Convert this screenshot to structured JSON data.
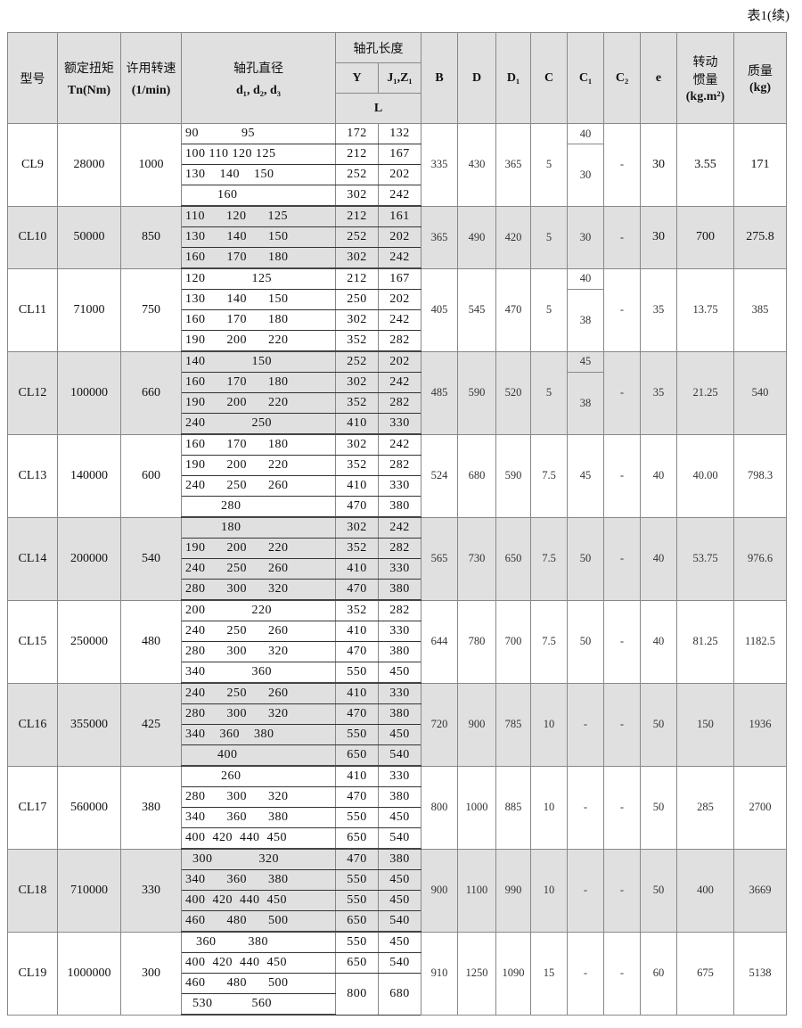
{
  "caption": "表1(续)",
  "headers": {
    "model": "型号",
    "torque": "额定扭矩",
    "torque_unit": "Tn(Nm)",
    "speed": "许用转速",
    "speed_unit": "(1/min)",
    "bore": "轴孔直径",
    "bore_sym": "d₁, d₂, d₃",
    "length": "轴孔长度",
    "Y": "Y",
    "J": "J₁,Z₁",
    "L": "L",
    "B": "B",
    "D": "D",
    "D1": "D₁",
    "C": "C",
    "C1": "C₁",
    "C2": "C₂",
    "e": "e",
    "inertia": "转动惯量",
    "inertia_unit": "(kg.m²)",
    "mass": "质量",
    "mass_unit": "(kg)"
  },
  "rows": [
    {
      "model": "CL9",
      "torque": "28000",
      "speed": "1000",
      "bores": [
        "90            95",
        "100 110 120 125",
        "130    140    150",
        "         160"
      ],
      "L": [
        [
          "172",
          "132"
        ],
        [
          "212",
          "167"
        ],
        [
          "252",
          "202"
        ],
        [
          "302",
          "242"
        ]
      ],
      "B": "335",
      "D": "430",
      "D1": "365",
      "C": "5",
      "C1": [
        "40",
        "30"
      ],
      "C2": "-",
      "e": "30",
      "inertia": "3.55",
      "mass": "171"
    },
    {
      "model": "CL10",
      "torque": "50000",
      "speed": "850",
      "bores": [
        "110      120      125",
        "130      140      150",
        "160      170      180"
      ],
      "L": [
        [
          "212",
          "161"
        ],
        [
          "252",
          "202"
        ],
        [
          "302",
          "242"
        ]
      ],
      "B": "365",
      "D": "490",
      "D1": "420",
      "C": "5",
      "C1": "30",
      "C2": "-",
      "e": "30",
      "inertia": "700",
      "mass": "275.8"
    },
    {
      "model": "CL11",
      "torque": "71000",
      "speed": "750",
      "bores": [
        "120             125",
        "130      140      150",
        "160      170      180",
        "190      200      220"
      ],
      "L": [
        [
          "212",
          "167"
        ],
        [
          "250",
          "202"
        ],
        [
          "302",
          "242"
        ],
        [
          "352",
          "282"
        ]
      ],
      "B": "405",
      "D": "545",
      "D1": "470",
      "C": "5",
      "C1": [
        "40",
        "38"
      ],
      "C2": "-",
      "e": "35",
      "inertia": "13.75",
      "mass": "385"
    },
    {
      "model": "CL12",
      "torque": "100000",
      "speed": "660",
      "bores": [
        "140             150",
        "160      170      180",
        "190      200      220",
        "240             250"
      ],
      "L": [
        [
          "252",
          "202"
        ],
        [
          "302",
          "242"
        ],
        [
          "352",
          "282"
        ],
        [
          "410",
          "330"
        ]
      ],
      "B": "485",
      "D": "590",
      "D1": "520",
      "C": "5",
      "C1": [
        "45",
        "38"
      ],
      "C2": "-",
      "e": "35",
      "inertia": "21.25",
      "mass": "540"
    },
    {
      "model": "CL13",
      "torque": "140000",
      "speed": "600",
      "bores": [
        "160      170      180",
        "190      200      220",
        "240      250      260",
        "          280"
      ],
      "L": [
        [
          "302",
          "242"
        ],
        [
          "352",
          "282"
        ],
        [
          "410",
          "330"
        ],
        [
          "470",
          "380"
        ]
      ],
      "B": "524",
      "D": "680",
      "D1": "590",
      "C": "7.5",
      "C1": "45",
      "C2": "-",
      "e": "40",
      "inertia": "40.00",
      "mass": "798.3"
    },
    {
      "model": "CL14",
      "torque": "200000",
      "speed": "540",
      "bores": [
        "          180",
        "190      200      220",
        "240      250      260",
        "280      300      320"
      ],
      "L": [
        [
          "302",
          "242"
        ],
        [
          "352",
          "282"
        ],
        [
          "410",
          "330"
        ],
        [
          "470",
          "380"
        ]
      ],
      "B": "565",
      "D": "730",
      "D1": "650",
      "C": "7.5",
      "C1": "50",
      "C2": "-",
      "e": "40",
      "inertia": "53.75",
      "mass": "976.6"
    },
    {
      "model": "CL15",
      "torque": "250000",
      "speed": "480",
      "bores": [
        "200             220",
        "240      250      260",
        "280      300      320",
        "340             360"
      ],
      "L": [
        [
          "352",
          "282"
        ],
        [
          "410",
          "330"
        ],
        [
          "470",
          "380"
        ],
        [
          "550",
          "450"
        ]
      ],
      "B": "644",
      "D": "780",
      "D1": "700",
      "C": "7.5",
      "C1": "50",
      "C2": "-",
      "e": "40",
      "inertia": "81.25",
      "mass": "1182.5"
    },
    {
      "model": "CL16",
      "torque": "355000",
      "speed": "425",
      "bores": [
        "240      250      260",
        "280      300      320",
        "340    360    380",
        "         400"
      ],
      "L": [
        [
          "410",
          "330"
        ],
        [
          "470",
          "380"
        ],
        [
          "550",
          "450"
        ],
        [
          "650",
          "540"
        ]
      ],
      "B": "720",
      "D": "900",
      "D1": "785",
      "C": "10",
      "C1": "-",
      "C2": "-",
      "e": "50",
      "inertia": "150",
      "mass": "1936"
    },
    {
      "model": "CL17",
      "torque": "560000",
      "speed": "380",
      "bores": [
        "          260",
        "280      300      320",
        "340      360      380",
        "400  420  440  450"
      ],
      "L": [
        [
          "410",
          "330"
        ],
        [
          "470",
          "380"
        ],
        [
          "550",
          "450"
        ],
        [
          "650",
          "540"
        ]
      ],
      "B": "800",
      "D": "1000",
      "D1": "885",
      "C": "10",
      "C1": "-",
      "C2": "-",
      "e": "50",
      "inertia": "285",
      "mass": "2700"
    },
    {
      "model": "CL18",
      "torque": "710000",
      "speed": "330",
      "bores": [
        "  300             320",
        "340      360      380",
        "400  420  440  450",
        "460      480      500"
      ],
      "L": [
        [
          "470",
          "380"
        ],
        [
          "550",
          "450"
        ],
        [
          "550",
          "450"
        ],
        [
          "650",
          "540"
        ]
      ],
      "B": "900",
      "D": "1100",
      "D1": "990",
      "C": "10",
      "C1": "-",
      "C2": "-",
      "e": "50",
      "inertia": "400",
      "mass": "3669"
    },
    {
      "model": "CL19",
      "torque": "1000000",
      "speed": "300",
      "bores": [
        "   360         380",
        "400  420  440  450",
        "460      480      500",
        "  530           560"
      ],
      "L": [
        [
          "550",
          "450"
        ],
        [
          "650",
          "540"
        ],
        [
          "800",
          "680"
        ]
      ],
      "B": "910",
      "D": "1250",
      "D1": "1090",
      "C": "15",
      "C1": "-",
      "C2": "-",
      "e": "60",
      "inertia": "675",
      "mass": "5138"
    }
  ]
}
